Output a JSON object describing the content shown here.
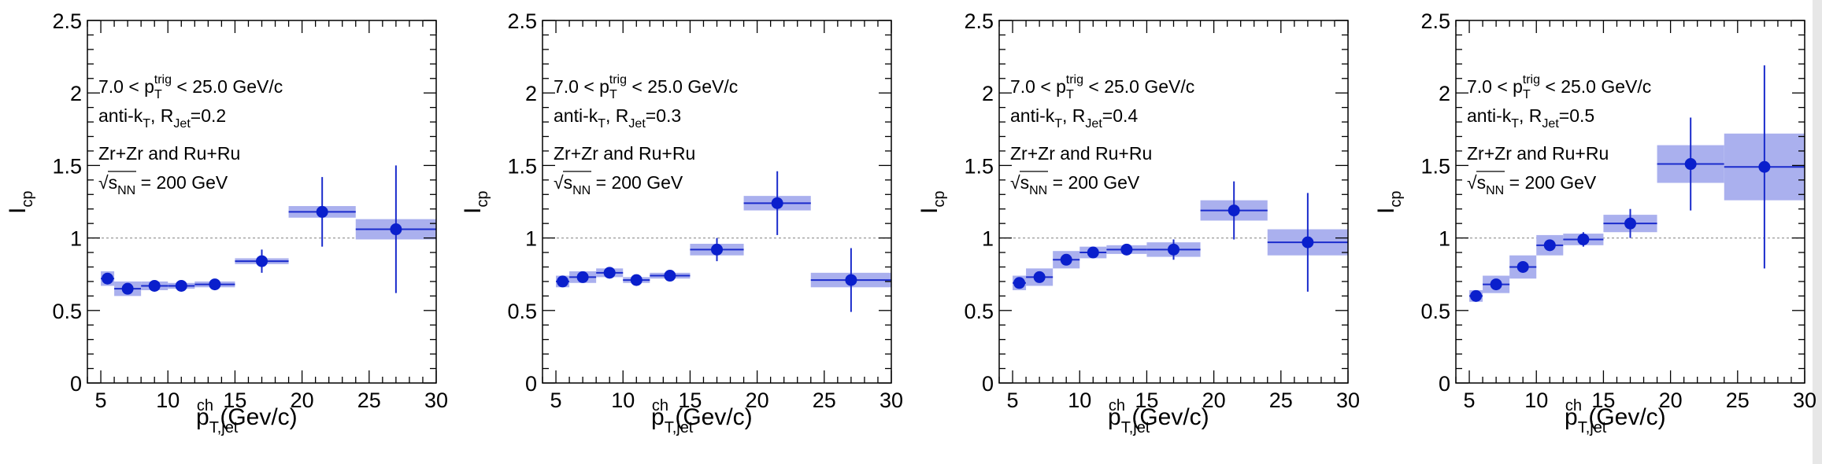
{
  "chart_data": [
    {
      "type": "scatter",
      "title": "",
      "xlabel": "p_T,jet^ch (Gev/c)",
      "ylabel": "I_cp",
      "xlim": [
        4,
        30
      ],
      "ylim": [
        0,
        2.5
      ],
      "x_ticks": [
        "5",
        "10",
        "15",
        "20",
        "25",
        "30"
      ],
      "y_ticks": [
        "0",
        "0.5",
        "1",
        "1.5",
        "2",
        "2.5"
      ],
      "reference_line": 1,
      "annotations": {
        "trigger": "7.0 < p_T^trig < 25.0 GeV/c",
        "jet": "anti-k_T, R_Jet=0.2",
        "system": "Zr+Zr and Ru+Ru",
        "energy": "√s_NN = 200 GeV"
      },
      "series": [
        {
          "points": [
            {
              "x": 5.5,
              "x_lo": 5,
              "x_hi": 6,
              "y": 0.72,
              "stat": 0.03,
              "sys": 0.05
            },
            {
              "x": 7,
              "x_lo": 6,
              "x_hi": 8,
              "y": 0.65,
              "stat": 0.02,
              "sys": 0.05
            },
            {
              "x": 9,
              "x_lo": 8,
              "x_hi": 10,
              "y": 0.67,
              "stat": 0.02,
              "sys": 0.03
            },
            {
              "x": 11,
              "x_lo": 10,
              "x_hi": 12,
              "y": 0.67,
              "stat": 0.02,
              "sys": 0.02
            },
            {
              "x": 13.5,
              "x_lo": 12,
              "x_hi": 15,
              "y": 0.68,
              "stat": 0.02,
              "sys": 0.02
            },
            {
              "x": 17,
              "x_lo": 15,
              "x_hi": 19,
              "y": 0.84,
              "stat": 0.08,
              "sys": 0.02
            },
            {
              "x": 21.5,
              "x_lo": 19,
              "x_hi": 24,
              "y": 1.18,
              "stat": 0.24,
              "sys": 0.04
            },
            {
              "x": 27,
              "x_lo": 24,
              "x_hi": 30,
              "y": 1.06,
              "stat": 0.44,
              "sys": 0.07
            }
          ]
        }
      ]
    },
    {
      "type": "scatter",
      "title": "",
      "xlabel": "p_T,jet^ch (Gev/c)",
      "ylabel": "I_cp",
      "xlim": [
        4,
        30
      ],
      "ylim": [
        0,
        2.5
      ],
      "x_ticks": [
        "5",
        "10",
        "15",
        "20",
        "25",
        "30"
      ],
      "y_ticks": [
        "0",
        "0.5",
        "1",
        "1.5",
        "2",
        "2.5"
      ],
      "reference_line": 1,
      "annotations": {
        "trigger": "7.0 < p_T^trig < 25.0 GeV/c",
        "jet": "anti-k_T, R_Jet=0.3",
        "system": "Zr+Zr and Ru+Ru",
        "energy": "√s_NN = 200 GeV"
      },
      "series": [
        {
          "points": [
            {
              "x": 5.5,
              "x_lo": 5,
              "x_hi": 6,
              "y": 0.7,
              "stat": 0.02,
              "sys": 0.04
            },
            {
              "x": 7,
              "x_lo": 6,
              "x_hi": 8,
              "y": 0.73,
              "stat": 0.02,
              "sys": 0.04
            },
            {
              "x": 9,
              "x_lo": 8,
              "x_hi": 10,
              "y": 0.76,
              "stat": 0.02,
              "sys": 0.03
            },
            {
              "x": 11,
              "x_lo": 10,
              "x_hi": 12,
              "y": 0.71,
              "stat": 0.02,
              "sys": 0.02
            },
            {
              "x": 13.5,
              "x_lo": 12,
              "x_hi": 15,
              "y": 0.74,
              "stat": 0.02,
              "sys": 0.02
            },
            {
              "x": 17,
              "x_lo": 15,
              "x_hi": 19,
              "y": 0.92,
              "stat": 0.08,
              "sys": 0.04
            },
            {
              "x": 21.5,
              "x_lo": 19,
              "x_hi": 24,
              "y": 1.24,
              "stat": 0.22,
              "sys": 0.05
            },
            {
              "x": 27,
              "x_lo": 24,
              "x_hi": 30,
              "y": 0.71,
              "stat": 0.22,
              "sys": 0.05
            }
          ]
        }
      ]
    },
    {
      "type": "scatter",
      "title": "",
      "xlabel": "p_T,jet^ch (Gev/c)",
      "ylabel": "I_cp",
      "xlim": [
        4,
        30
      ],
      "ylim": [
        0,
        2.5
      ],
      "x_ticks": [
        "5",
        "10",
        "15",
        "20",
        "25",
        "30"
      ],
      "y_ticks": [
        "0",
        "0.5",
        "1",
        "1.5",
        "2",
        "2.5"
      ],
      "reference_line": 1,
      "annotations": {
        "trigger": "7.0 < p_T^trig < 25.0 GeV/c",
        "jet": "anti-k_T, R_Jet=0.4",
        "system": "Zr+Zr and Ru+Ru",
        "energy": "√s_NN = 200 GeV"
      },
      "series": [
        {
          "points": [
            {
              "x": 5.5,
              "x_lo": 5,
              "x_hi": 6,
              "y": 0.69,
              "stat": 0.02,
              "sys": 0.05
            },
            {
              "x": 7,
              "x_lo": 6,
              "x_hi": 8,
              "y": 0.73,
              "stat": 0.02,
              "sys": 0.06
            },
            {
              "x": 9,
              "x_lo": 8,
              "x_hi": 10,
              "y": 0.85,
              "stat": 0.02,
              "sys": 0.06
            },
            {
              "x": 11,
              "x_lo": 10,
              "x_hi": 12,
              "y": 0.9,
              "stat": 0.03,
              "sys": 0.04
            },
            {
              "x": 13.5,
              "x_lo": 12,
              "x_hi": 15,
              "y": 0.92,
              "stat": 0.03,
              "sys": 0.03
            },
            {
              "x": 17,
              "x_lo": 15,
              "x_hi": 19,
              "y": 0.92,
              "stat": 0.07,
              "sys": 0.05
            },
            {
              "x": 21.5,
              "x_lo": 19,
              "x_hi": 24,
              "y": 1.19,
              "stat": 0.2,
              "sys": 0.07
            },
            {
              "x": 27,
              "x_lo": 24,
              "x_hi": 30,
              "y": 0.97,
              "stat": 0.34,
              "sys": 0.09
            }
          ]
        }
      ]
    },
    {
      "type": "scatter",
      "title": "",
      "xlabel": "p_T,jet^ch (Gev/c)",
      "ylabel": "I_cp",
      "xlim": [
        4,
        30
      ],
      "ylim": [
        0,
        2.5
      ],
      "x_ticks": [
        "5",
        "10",
        "15",
        "20",
        "25",
        "30"
      ],
      "y_ticks": [
        "0",
        "0.5",
        "1",
        "1.5",
        "2",
        "2.5"
      ],
      "reference_line": 1,
      "annotations": {
        "trigger": "7.0 < p_T^trig < 25.0 GeV/c",
        "jet": "anti-k_T, R_Jet=0.5",
        "system": "Zr+Zr and Ru+Ru",
        "energy": "√s_NN = 200 GeV"
      },
      "series": [
        {
          "points": [
            {
              "x": 5.5,
              "x_lo": 5,
              "x_hi": 6,
              "y": 0.6,
              "stat": 0.02,
              "sys": 0.04
            },
            {
              "x": 7,
              "x_lo": 6,
              "x_hi": 8,
              "y": 0.68,
              "stat": 0.02,
              "sys": 0.06
            },
            {
              "x": 9,
              "x_lo": 8,
              "x_hi": 10,
              "y": 0.8,
              "stat": 0.03,
              "sys": 0.08
            },
            {
              "x": 11,
              "x_lo": 10,
              "x_hi": 12,
              "y": 0.95,
              "stat": 0.03,
              "sys": 0.07
            },
            {
              "x": 13.5,
              "x_lo": 12,
              "x_hi": 15,
              "y": 0.99,
              "stat": 0.05,
              "sys": 0.04
            },
            {
              "x": 17,
              "x_lo": 15,
              "x_hi": 19,
              "y": 1.1,
              "stat": 0.1,
              "sys": 0.06
            },
            {
              "x": 21.5,
              "x_lo": 19,
              "x_hi": 24,
              "y": 1.51,
              "stat": 0.32,
              "sys": 0.13
            },
            {
              "x": 27,
              "x_lo": 24,
              "x_hi": 30,
              "y": 1.49,
              "stat": 0.7,
              "sys": 0.23
            }
          ]
        }
      ]
    }
  ]
}
